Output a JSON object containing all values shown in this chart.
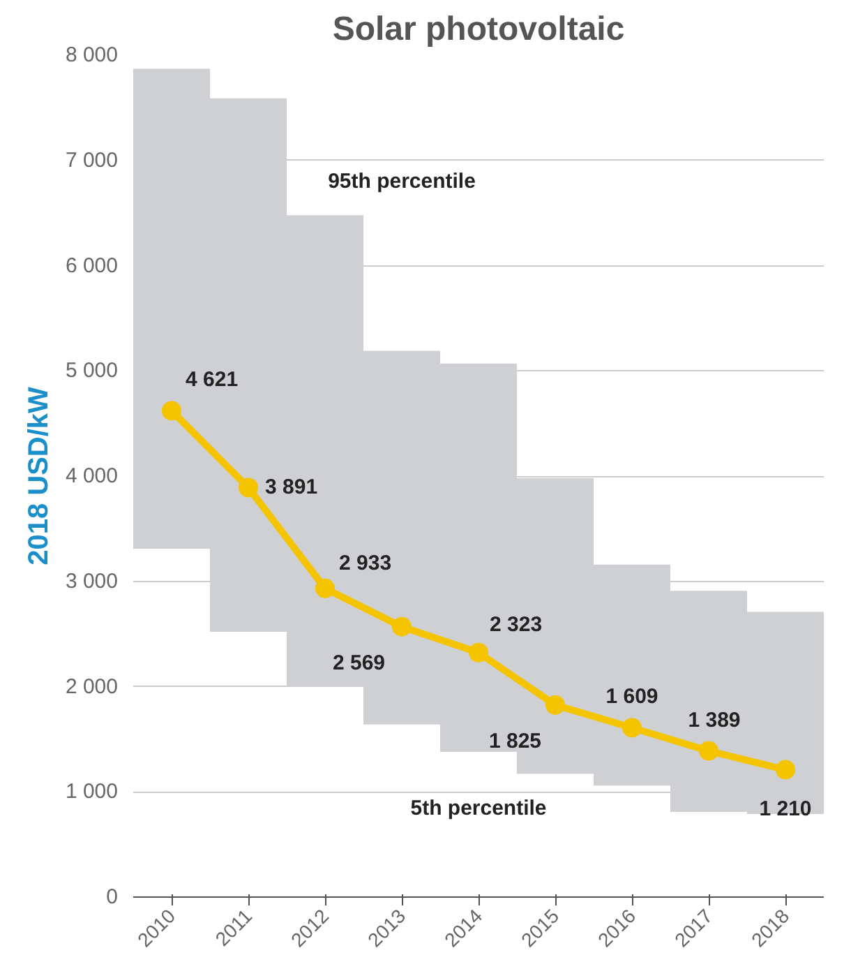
{
  "chart_data": {
    "type": "bar",
    "title": "Solar photovoltaic",
    "ylabel": "2018 USD/kW",
    "categories": [
      "2010",
      "2011",
      "2012",
      "2013",
      "2014",
      "2015",
      "2016",
      "2017",
      "2018"
    ],
    "series": [
      {
        "color": "#cfd0d4",
        "base": [
          3310,
          2520,
          2000,
          1640,
          1380,
          1170,
          1060,
          810,
          790
        ],
        "values": [
          4560,
          5070,
          4480,
          3550,
          3690,
          2810,
          2100,
          2100,
          1920
        ]
      },
      {
        "type": "line",
        "color": "#f5c400",
        "marker": "circle",
        "values": [
          4621,
          3891,
          2933,
          2569,
          2323,
          1825,
          1609,
          1389,
          1210
        ],
        "value_labels": [
          "4 621",
          "3 891",
          "2 933",
          "2 569",
          "2 323",
          "1 825",
          "1 609",
          "1 389",
          "1 210"
        ]
      }
    ],
    "ylim": [
      0,
      8000
    ],
    "yticks": [
      0,
      {
        "value": 1000,
        "label": "1 000"
      },
      {
        "value": 2000,
        "label": "2 000"
      },
      {
        "value": 3000,
        "label": "3 000"
      },
      {
        "value": 4000,
        "label": "4 000"
      },
      {
        "value": 5000,
        "label": "5 000"
      },
      {
        "value": 6000,
        "label": "6 000"
      },
      {
        "value": 7000,
        "label": "7 000"
      },
      {
        "value": 8000,
        "label": "8 000"
      }
    ],
    "grid": "y",
    "annotations": [
      "95th percentile",
      "5th percentile"
    ]
  }
}
